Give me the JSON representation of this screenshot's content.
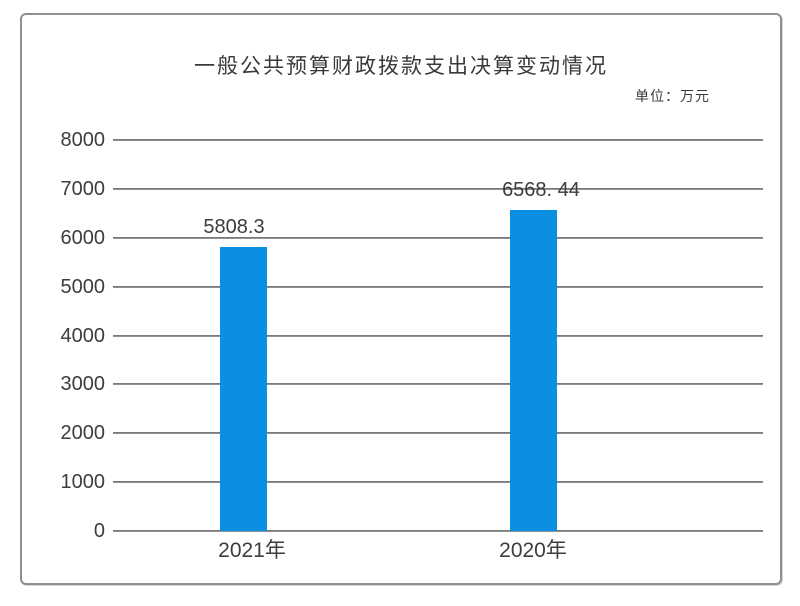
{
  "page": {
    "title": "一般公共预算财政拨款支出决算变动情况",
    "unit_label": "单位：万元"
  },
  "chart_data": {
    "type": "bar",
    "title": "一般公共预算财政拨款支出决算变动情况",
    "unit": "单位：万元",
    "categories": [
      "2021年",
      "2020年"
    ],
    "values": [
      5808.3,
      6568.44
    ],
    "value_labels": [
      "5808.3",
      "6568. 44"
    ],
    "xlabel": "",
    "ylabel": "",
    "ylim": [
      0,
      8000
    ],
    "yticks": [
      8000,
      7000,
      6000,
      5000,
      4000,
      3000,
      2000,
      1000,
      0
    ],
    "grid": true,
    "legend_position": "none",
    "bar_color": "#0a8fe2",
    "gridline_color": "#7f7f7f",
    "text_color": "#3d3d3d",
    "border_color": "#8f8f8f"
  }
}
